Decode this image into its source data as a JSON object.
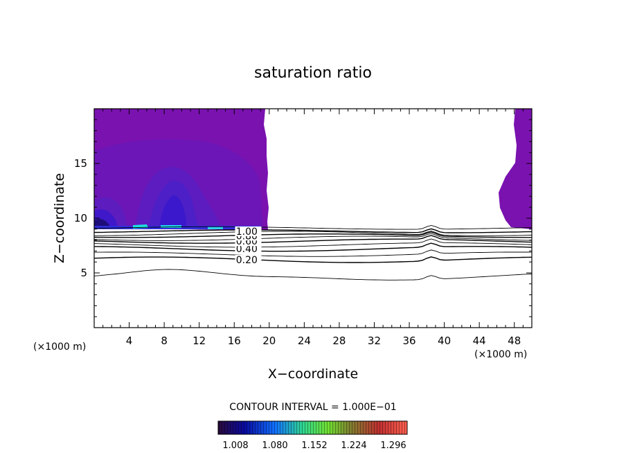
{
  "chart_data": {
    "type": "contour",
    "title": "saturation ratio",
    "xlabel": "X−coordinate",
    "ylabel": "Z−coordinate",
    "x_unit": "(×1000 m)",
    "x_unit_right": "(×1000 m)",
    "xlim": [
      0,
      50
    ],
    "ylim": [
      0,
      20
    ],
    "x_ticks": [
      4,
      8,
      12,
      16,
      20,
      24,
      28,
      32,
      36,
      40,
      44,
      48
    ],
    "y_ticks": [
      5,
      10,
      15
    ],
    "contour_interval_text": "CONTOUR INTERVAL = 1.000E−01",
    "contour_levels": [
      {
        "value": 0.2,
        "label": "0.20",
        "z_mean": 6.2
      },
      {
        "value": 0.4,
        "label": "0.40",
        "z_mean": 7.2
      },
      {
        "value": 0.6,
        "label": "0.60",
        "z_mean": 7.9
      },
      {
        "value": 0.8,
        "label": "0.80",
        "z_mean": 8.4
      },
      {
        "value": 1.0,
        "label": "1.00",
        "z_mean": 8.8
      }
    ],
    "colorbar": {
      "labels": [
        "1.008",
        "1.080",
        "1.152",
        "1.224",
        "1.296"
      ],
      "colors": [
        "#2a0a3c",
        "#0a0aa0",
        "#1070ff",
        "#30d890",
        "#70e030",
        "#808030",
        "#c03030",
        "#ff6050"
      ]
    },
    "fill_color": "#7a12b0",
    "grid": false,
    "legend": "colorbar-bottom"
  }
}
